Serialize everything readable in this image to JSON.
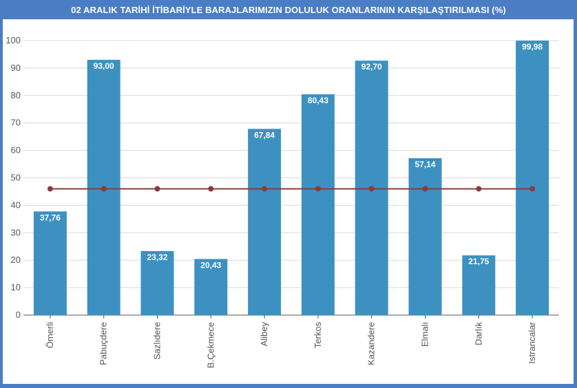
{
  "chart_data": {
    "type": "bar",
    "title": "02 ARALIK TARİHİ İTİBARİYLE BARAJLARIMIZIN DOLULUK ORANLARININ KARŞILAŞTIRILMASI (%)",
    "categories": [
      "Ömerli",
      "Pabuçdere",
      "Sazlıdere",
      "B.Çekmece",
      "Alibey",
      "Terkos",
      "Kazandere",
      "Elmalı",
      "Darlık",
      "Istrancalar"
    ],
    "series": [
      {
        "type": "bar",
        "values": [
          37.76,
          93.0,
          23.32,
          20.43,
          67.84,
          80.43,
          92.7,
          57.14,
          21.75,
          99.98
        ],
        "labels": [
          "37,76",
          "93,00",
          "23,32",
          "20,43",
          "67,84",
          "80,43",
          "92,70",
          "57,14",
          "21,75",
          "99,98"
        ],
        "color": "#3d91c0"
      },
      {
        "type": "line",
        "values": [
          46,
          46,
          46,
          46,
          46,
          46,
          46,
          46,
          46,
          46
        ],
        "color": "#8b3a3a"
      }
    ],
    "ylim": [
      0,
      100
    ],
    "yticks": [
      "0",
      "10",
      "20",
      "30",
      "40",
      "50",
      "60",
      "70",
      "80",
      "90",
      "100"
    ],
    "grid": true,
    "legend": "none"
  },
  "colors": {
    "frame": "#4a7dc4",
    "bar": "#3d91c0",
    "line": "#8b3a3a",
    "grid": "#d9d9d9"
  }
}
